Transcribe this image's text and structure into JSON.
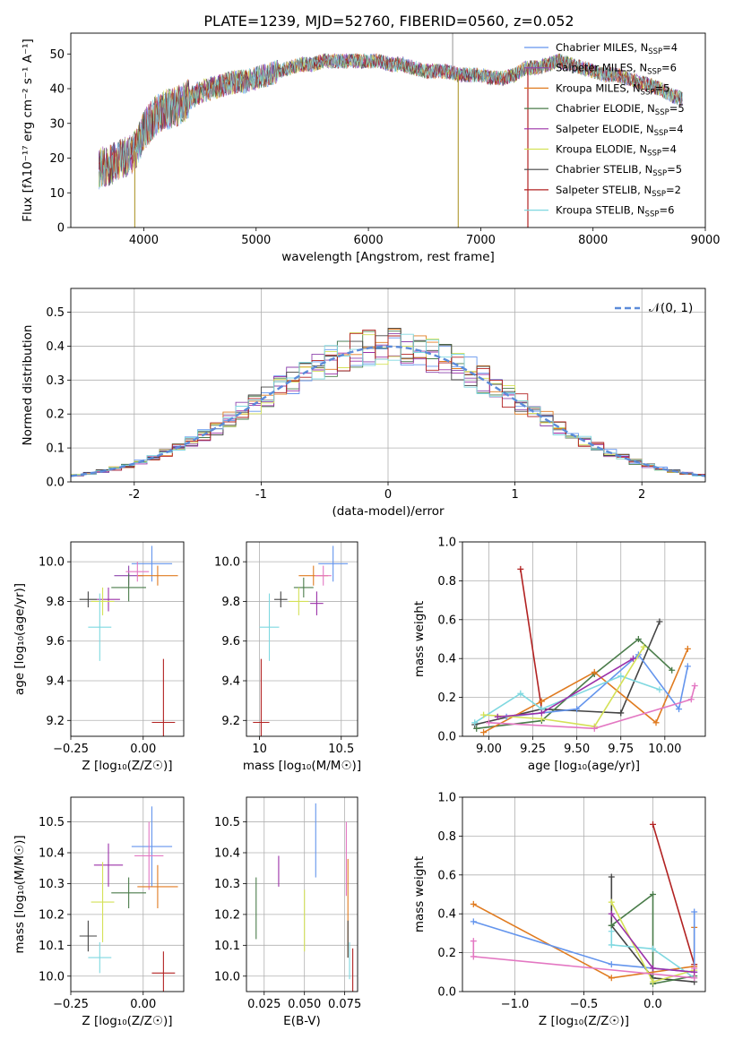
{
  "figure": {
    "title": "PLATE=1239, MJD=52760, FIBERID=0560, z=0.052"
  },
  "palette": {
    "chabrier_miles": "#6495ed",
    "salpeter_miles": "#8e44ad",
    "kroupa_miles": "#e07b20",
    "chabrier_elodie": "#4a7c4a",
    "salpeter_elodie": "#9b30a8",
    "kroupa_elodie": "#d4e157",
    "chabrier_stelib": "#444444",
    "salpeter_stelib": "#b22222",
    "kroupa_stelib": "#7fd8e0",
    "pink": "#e377c2",
    "normal_curve": "#5b8bd9"
  },
  "chart_data": [
    {
      "id": "spectrum",
      "type": "line",
      "xlabel": "wavelength [Angstrom, rest frame]",
      "ylabel": "Flux [fλ10⁻¹⁷ erg cm⁻² s⁻¹ A⁻¹]",
      "xlim": [
        3350,
        9000
      ],
      "ylim": [
        0,
        56
      ],
      "xticks": [
        4000,
        5000,
        6000,
        7000,
        8000,
        9000
      ],
      "yticks": [
        0,
        10,
        20,
        30,
        40,
        50
      ],
      "legend_position": "upper right",
      "legend": [
        {
          "label": "Chabrier MILES, N",
          "sub": "SSP",
          "n": "=4",
          "color_key": "chabrier_miles"
        },
        {
          "label": "Salpeter MILES, N",
          "sub": "SSP",
          "n": "=6",
          "color_key": "salpeter_miles"
        },
        {
          "label": "Kroupa MILES, N",
          "sub": "SSP",
          "n": "=5",
          "color_key": "kroupa_miles"
        },
        {
          "label": "Chabrier ELODIE, N",
          "sub": "SSP",
          "n": "=5",
          "color_key": "chabrier_elodie"
        },
        {
          "label": "Salpeter ELODIE, N",
          "sub": "SSP",
          "n": "=4",
          "color_key": "salpeter_elodie"
        },
        {
          "label": "Kroupa ELODIE, N",
          "sub": "SSP",
          "n": "=4",
          "color_key": "kroupa_elodie"
        },
        {
          "label": "Chabrier STELIB, N",
          "sub": "SSP",
          "n": "=5",
          "color_key": "chabrier_stelib"
        },
        {
          "label": "Salpeter STELIB, N",
          "sub": "SSP",
          "n": "=2",
          "color_key": "salpeter_stelib"
        },
        {
          "label": "Kroupa STELIB, N",
          "sub": "SSP",
          "n": "=6",
          "color_key": "kroupa_stelib"
        }
      ],
      "continuum": [
        [
          3600,
          17
        ],
        [
          3700,
          18
        ],
        [
          3800,
          20
        ],
        [
          3900,
          21
        ],
        [
          3950,
          24
        ],
        [
          4000,
          28
        ],
        [
          4100,
          32
        ],
        [
          4200,
          34
        ],
        [
          4300,
          35
        ],
        [
          4400,
          37
        ],
        [
          4500,
          39
        ],
        [
          4600,
          40
        ],
        [
          4700,
          41
        ],
        [
          4800,
          42
        ],
        [
          4900,
          42
        ],
        [
          5000,
          43
        ],
        [
          5100,
          44
        ],
        [
          5200,
          45
        ],
        [
          5300,
          46
        ],
        [
          5400,
          47
        ],
        [
          5500,
          47
        ],
        [
          5600,
          48
        ],
        [
          5700,
          48
        ],
        [
          5800,
          48
        ],
        [
          5900,
          48
        ],
        [
          6000,
          48
        ],
        [
          6100,
          48
        ],
        [
          6200,
          47
        ],
        [
          6300,
          47
        ],
        [
          6400,
          46
        ],
        [
          6500,
          45
        ],
        [
          6600,
          45
        ],
        [
          6700,
          45
        ],
        [
          6800,
          44
        ],
        [
          6900,
          44
        ],
        [
          7000,
          44
        ],
        [
          7100,
          43
        ],
        [
          7200,
          43
        ],
        [
          7300,
          44
        ],
        [
          7400,
          46
        ],
        [
          7500,
          46
        ],
        [
          7600,
          47
        ],
        [
          7700,
          48
        ],
        [
          7800,
          47
        ],
        [
          7900,
          46
        ],
        [
          8000,
          45
        ],
        [
          8100,
          44
        ],
        [
          8200,
          44
        ],
        [
          8300,
          43
        ],
        [
          8400,
          42
        ],
        [
          8500,
          41
        ],
        [
          8600,
          40
        ],
        [
          8700,
          38
        ],
        [
          8800,
          37
        ]
      ],
      "dropouts": [
        [
          3920,
          0
        ],
        [
          6800,
          0
        ],
        [
          7420,
          0
        ]
      ]
    },
    {
      "id": "residual_hist",
      "type": "area",
      "xlabel": "(data-model)/error",
      "ylabel": "Normed distribution",
      "xlim": [
        -2.5,
        2.5
      ],
      "ylim": [
        0,
        0.57
      ],
      "xticks": [
        -2,
        -1,
        0,
        1,
        2
      ],
      "yticks": [
        0.0,
        0.1,
        0.2,
        0.3,
        0.4,
        0.5
      ],
      "grid": true,
      "legend_position": "upper right",
      "legend_label": "𝒩(0, 1)",
      "bin_width": 0.1
    },
    {
      "id": "age_vs_Z",
      "type": "scatter",
      "xlabel": "Z [log₁₀(Z/Z☉)]",
      "ylabel": "age  [log₁₀(age/yr)]",
      "xlim": [
        -0.25,
        0.14
      ],
      "ylim": [
        9.12,
        10.1
      ],
      "xticks": [
        -0.25,
        0.0
      ],
      "xticklabels": [
        "−0.25",
        "0.00"
      ],
      "yticks": [
        9.2,
        9.4,
        9.6,
        9.8,
        10.0
      ],
      "grid": true,
      "points": [
        {
          "color_key": "chabrier_miles",
          "x": 0.03,
          "y": 9.99,
          "xe": 0.07,
          "ye": 0.09
        },
        {
          "color_key": "salpeter_miles",
          "x": -0.05,
          "y": 9.93,
          "xe": 0.05,
          "ye": 0.05
        },
        {
          "color_key": "kroupa_miles",
          "x": 0.05,
          "y": 9.93,
          "xe": 0.07,
          "ye": 0.05
        },
        {
          "color_key": "pink",
          "x": -0.02,
          "y": 9.95,
          "xe": 0.04,
          "ye": 0.05
        },
        {
          "color_key": "chabrier_elodie",
          "x": -0.05,
          "y": 9.87,
          "xe": 0.06,
          "ye": 0.07
        },
        {
          "color_key": "salpeter_elodie",
          "x": -0.12,
          "y": 9.81,
          "xe": 0.04,
          "ye": 0.06
        },
        {
          "color_key": "kroupa_elodie",
          "x": -0.14,
          "y": 9.8,
          "xe": 0.04,
          "ye": 0.07
        },
        {
          "color_key": "chabrier_stelib",
          "x": -0.19,
          "y": 9.81,
          "xe": 0.03,
          "ye": 0.04
        },
        {
          "color_key": "kroupa_stelib",
          "x": -0.15,
          "y": 9.67,
          "xe": 0.04,
          "ye": 0.17
        },
        {
          "color_key": "salpeter_stelib",
          "x": 0.07,
          "y": 9.19,
          "xe": 0.04,
          "ye": 0.32
        }
      ]
    },
    {
      "id": "age_vs_mass",
      "type": "scatter",
      "xlabel": "mass [log₁₀(M/M☉)]",
      "xlim": [
        9.92,
        10.6
      ],
      "ylim": [
        9.12,
        10.1
      ],
      "xticks": [
        10.0,
        10.5
      ],
      "yticks": [
        9.2,
        9.4,
        9.6,
        9.8,
        10.0
      ],
      "grid": true,
      "points": [
        {
          "color_key": "chabrier_miles",
          "x": 10.45,
          "y": 9.99,
          "xe": 0.09,
          "ye": 0.09
        },
        {
          "color_key": "kroupa_miles",
          "x": 10.33,
          "y": 9.93,
          "xe": 0.09,
          "ye": 0.05
        },
        {
          "color_key": "pink",
          "x": 10.39,
          "y": 9.93,
          "xe": 0.05,
          "ye": 0.05
        },
        {
          "color_key": "chabrier_elodie",
          "x": 10.27,
          "y": 9.87,
          "xe": 0.06,
          "ye": 0.05
        },
        {
          "color_key": "chabrier_stelib",
          "x": 10.13,
          "y": 9.81,
          "xe": 0.04,
          "ye": 0.04
        },
        {
          "color_key": "kroupa_elodie",
          "x": 10.24,
          "y": 9.8,
          "xe": 0.06,
          "ye": 0.07
        },
        {
          "color_key": "salpeter_elodie",
          "x": 10.35,
          "y": 9.79,
          "xe": 0.04,
          "ye": 0.06
        },
        {
          "color_key": "kroupa_stelib",
          "x": 10.06,
          "y": 9.67,
          "xe": 0.06,
          "ye": 0.17
        },
        {
          "color_key": "salpeter_stelib",
          "x": 10.01,
          "y": 9.19,
          "xe": 0.05,
          "ye": 0.32
        }
      ]
    },
    {
      "id": "mass_weight_vs_age",
      "type": "line",
      "xlabel": "age  [log₁₀(age/yr)]",
      "ylabel": "mass weight",
      "xlim": [
        8.85,
        10.23
      ],
      "ylim": [
        0,
        1.0
      ],
      "xticks": [
        9.0,
        9.25,
        9.5,
        9.75,
        10.0
      ],
      "xticklabels": [
        "9.00",
        "9.25",
        "9.50",
        "9.75",
        "10.00"
      ],
      "yticks": [
        0.0,
        0.2,
        0.4,
        0.6,
        0.8,
        1.0
      ],
      "grid": true,
      "series": [
        {
          "color_key": "salpeter_stelib",
          "x": [
            9.18,
            9.3
          ],
          "y": [
            0.86,
            0.14
          ]
        },
        {
          "color_key": "chabrier_stelib",
          "x": [
            8.92,
            9.3,
            9.75,
            9.97
          ],
          "y": [
            0.06,
            0.14,
            0.12,
            0.59
          ]
        },
        {
          "color_key": "chabrier_elodie",
          "x": [
            8.93,
            9.3,
            9.6,
            9.85,
            10.04
          ],
          "y": [
            0.04,
            0.08,
            0.32,
            0.5,
            0.34
          ]
        },
        {
          "color_key": "kroupa_miles",
          "x": [
            8.97,
            9.3,
            9.6,
            9.95,
            10.13
          ],
          "y": [
            0.02,
            0.18,
            0.33,
            0.07,
            0.45
          ]
        },
        {
          "color_key": "chabrier_miles",
          "x": [
            9.1,
            9.5,
            9.85,
            10.08,
            10.13
          ],
          "y": [
            0.1,
            0.14,
            0.42,
            0.14,
            0.36
          ]
        },
        {
          "color_key": "kroupa_stelib",
          "x": [
            8.92,
            9.18,
            9.3,
            9.75,
            9.97
          ],
          "y": [
            0.07,
            0.22,
            0.14,
            0.31,
            0.24
          ]
        },
        {
          "color_key": "kroupa_elodie",
          "x": [
            8.97,
            9.3,
            9.6,
            9.88
          ],
          "y": [
            0.11,
            0.09,
            0.05,
            0.46
          ]
        },
        {
          "color_key": "pink",
          "x": [
            9.0,
            9.6,
            10.15,
            10.17
          ],
          "y": [
            0.07,
            0.04,
            0.19,
            0.26
          ]
        },
        {
          "color_key": "salpeter_elodie",
          "x": [
            9.05,
            9.3,
            9.82
          ],
          "y": [
            0.1,
            0.12,
            0.4
          ]
        }
      ]
    },
    {
      "id": "mass_vs_Z",
      "type": "scatter",
      "xlabel": "Z [log₁₀(Z/Z☉)]",
      "ylabel": "mass [log₁₀(M/M☉)]",
      "xlim": [
        -0.25,
        0.14
      ],
      "ylim": [
        9.95,
        10.58
      ],
      "xticks": [
        -0.25,
        0.0
      ],
      "xticklabels": [
        "−0.25",
        "0.00"
      ],
      "yticks": [
        10.0,
        10.1,
        10.2,
        10.3,
        10.4,
        10.5
      ],
      "grid": true,
      "points": [
        {
          "color_key": "chabrier_miles",
          "x": 0.03,
          "y": 10.42,
          "xe": 0.07,
          "ye": 0.13
        },
        {
          "color_key": "pink",
          "x": 0.02,
          "y": 10.39,
          "xe": 0.05,
          "ye": 0.11
        },
        {
          "color_key": "salpeter_elodie",
          "x": -0.12,
          "y": 10.36,
          "xe": 0.05,
          "ye": 0.07
        },
        {
          "color_key": "kroupa_miles",
          "x": 0.05,
          "y": 10.29,
          "xe": 0.07,
          "ye": 0.07
        },
        {
          "color_key": "chabrier_elodie",
          "x": -0.05,
          "y": 10.27,
          "xe": 0.06,
          "ye": 0.05
        },
        {
          "color_key": "kroupa_elodie",
          "x": -0.14,
          "y": 10.24,
          "xe": 0.04,
          "ye": 0.13
        },
        {
          "color_key": "chabrier_stelib",
          "x": -0.19,
          "y": 10.13,
          "xe": 0.03,
          "ye": 0.05
        },
        {
          "color_key": "kroupa_stelib",
          "x": -0.15,
          "y": 10.06,
          "xe": 0.04,
          "ye": 0.05
        },
        {
          "color_key": "salpeter_stelib",
          "x": 0.07,
          "y": 10.01,
          "xe": 0.04,
          "ye": 0.07
        }
      ]
    },
    {
      "id": "mass_vs_ebv",
      "type": "scatter",
      "xlabel": "E(B-V)",
      "xlim": [
        0.014,
        0.083
      ],
      "ylim": [
        9.95,
        10.58
      ],
      "xticks": [
        0.025,
        0.05,
        0.075
      ],
      "xticklabels": [
        "0.025",
        "0.050",
        "0.075"
      ],
      "yticks": [
        10.0,
        10.1,
        10.2,
        10.3,
        10.4,
        10.5
      ],
      "grid": true,
      "points": [
        {
          "color_key": "chabrier_elodie",
          "x": 0.02,
          "y": 10.22,
          "ye": 0.1
        },
        {
          "color_key": "salpeter_elodie",
          "x": 0.034,
          "y": 10.34,
          "ye": 0.05
        },
        {
          "color_key": "kroupa_elodie",
          "x": 0.05,
          "y": 10.18,
          "ye": 0.1
        },
        {
          "color_key": "chabrier_miles",
          "x": 0.057,
          "y": 10.44,
          "ye": 0.12
        },
        {
          "color_key": "pink",
          "x": 0.076,
          "y": 10.38,
          "ye": 0.12
        },
        {
          "color_key": "kroupa_miles",
          "x": 0.077,
          "y": 10.22,
          "ye": 0.16
        },
        {
          "color_key": "chabrier_stelib",
          "x": 0.077,
          "y": 10.12,
          "ye": 0.06
        },
        {
          "color_key": "kroupa_stelib",
          "x": 0.078,
          "y": 10.05,
          "ye": 0.06
        },
        {
          "color_key": "salpeter_stelib",
          "x": 0.08,
          "y": 10.01,
          "ye": 0.08
        }
      ]
    },
    {
      "id": "mass_weight_vs_Z",
      "type": "line",
      "xlabel": "Z [log₁₀(Z/Z☉)]",
      "ylabel": "mass weight",
      "xlim": [
        -1.38,
        0.38
      ],
      "ylim": [
        0,
        1.0
      ],
      "xticks": [
        -1.0,
        -0.5,
        0.0
      ],
      "xticklabels": [
        "−1.0",
        "−0.5",
        "0.0"
      ],
      "yticks": [
        0.0,
        0.2,
        0.4,
        0.6,
        0.8,
        1.0
      ],
      "grid": true,
      "series": [
        {
          "color_key": "salpeter_stelib",
          "x": [
            0.0,
            0.3
          ],
          "y": [
            0.86,
            0.14
          ]
        },
        {
          "color_key": "chabrier_stelib",
          "x": [
            -0.3,
            -0.3,
            0.0,
            0.3
          ],
          "y": [
            0.59,
            0.34,
            0.07,
            0.05
          ]
        },
        {
          "color_key": "chabrier_elodie",
          "x": [
            -0.3,
            0.0,
            0.0,
            0.3
          ],
          "y": [
            0.34,
            0.5,
            0.04,
            0.08
          ]
        },
        {
          "color_key": "kroupa_miles",
          "x": [
            -1.3,
            -0.3,
            0.3,
            0.3
          ],
          "y": [
            0.45,
            0.07,
            0.13,
            0.33
          ]
        },
        {
          "color_key": "chabrier_miles",
          "x": [
            -1.3,
            -0.3,
            0.3,
            0.3
          ],
          "y": [
            0.36,
            0.14,
            0.1,
            0.41
          ]
        },
        {
          "color_key": "kroupa_stelib",
          "x": [
            -0.3,
            -0.3,
            0.0,
            0.3
          ],
          "y": [
            0.31,
            0.24,
            0.22,
            0.07
          ]
        },
        {
          "color_key": "kroupa_elodie",
          "x": [
            -0.3,
            0.0,
            0.3
          ],
          "y": [
            0.46,
            0.05,
            0.11
          ]
        },
        {
          "color_key": "pink",
          "x": [
            -1.3,
            -1.3,
            0.3,
            0.3
          ],
          "y": [
            0.26,
            0.18,
            0.07,
            0.12
          ]
        },
        {
          "color_key": "salpeter_elodie",
          "x": [
            -0.3,
            0.0,
            0.3
          ],
          "y": [
            0.4,
            0.12,
            0.1
          ]
        }
      ]
    }
  ]
}
